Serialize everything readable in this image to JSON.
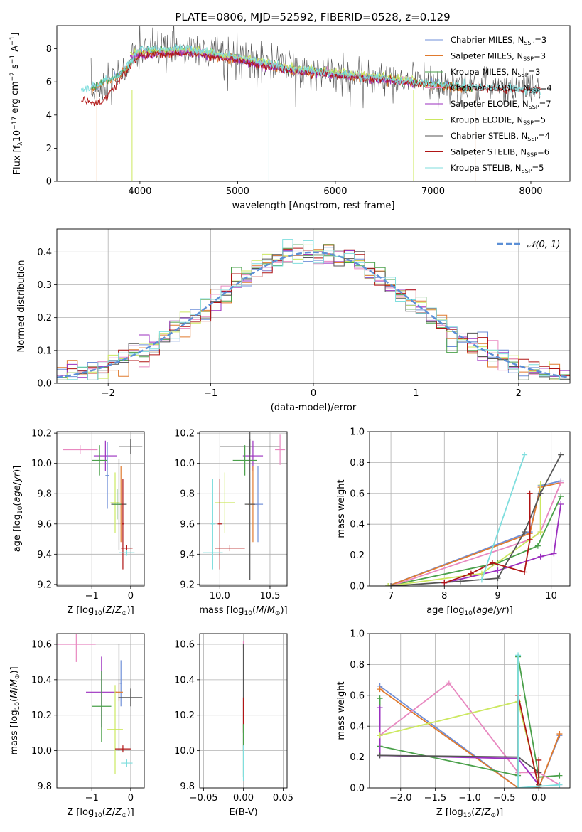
{
  "title": "PLATE=0806, MJD=52592, FIBERID=0528, z=0.129",
  "colors": {
    "Chabrier MILES": "#6f8fd8",
    "Salpeter MILES": "#e07a2e",
    "Kroupa MILES": "#4aa04a",
    "Chabrier ELODIE": "#e888c0",
    "Salpeter ELODIE": "#9b2fbf",
    "Kroupa ELODIE": "#cce860",
    "Chabrier STELIB": "#555555",
    "Salpeter STELIB": "#b01515",
    "Kroupa STELIB": "#7fdede",
    "normal": "#5b8fd6"
  },
  "chart_data": [
    {
      "id": "spectrum",
      "type": "line",
      "xlabel": "wavelength [Angstrom, rest frame]",
      "ylabel": "Flux [f_λ10^-17 erg cm^-2 s^-1 A^-1]",
      "xlim": [
        3150,
        8400
      ],
      "ylim": [
        0,
        9.4
      ],
      "xticks": [
        4000,
        5000,
        6000,
        7000,
        8000
      ],
      "yticks": [
        0,
        2,
        4,
        6,
        8
      ],
      "legend_position": "upper-right",
      "series": [
        {
          "name": "Chabrier MILES, N_SSP=3",
          "x": [
            3500,
            3800,
            4000,
            4500,
            5000,
            5500,
            6000,
            6500,
            7000,
            7400
          ],
          "y": [
            5.6,
            6.5,
            7.8,
            7.9,
            7.4,
            6.8,
            6.5,
            6.2,
            5.9,
            5.6
          ]
        },
        {
          "name": "Salpeter MILES, N_SSP=3",
          "x": [
            3500,
            3800,
            4000,
            4500,
            5000,
            5500,
            6000,
            6500,
            7000,
            7400
          ],
          "y": [
            5.5,
            6.4,
            7.7,
            7.8,
            7.3,
            6.7,
            6.4,
            6.1,
            5.8,
            5.5
          ]
        },
        {
          "name": "Kroupa MILES, N_SSP=3",
          "x": [
            3500,
            3800,
            4000,
            4500,
            5000,
            5500,
            6000,
            6500,
            7000,
            7400
          ],
          "y": [
            5.6,
            6.5,
            7.8,
            7.9,
            7.4,
            6.8,
            6.5,
            6.2,
            5.9,
            5.6
          ]
        },
        {
          "name": "Chabrier ELODIE, N_SSP=4",
          "x": [
            3900,
            4500,
            5000,
            5500,
            6000,
            6500,
            6800
          ],
          "y": [
            7.6,
            7.9,
            7.4,
            6.8,
            6.5,
            6.2,
            6.0
          ]
        },
        {
          "name": "Salpeter ELODIE, N_SSP=7",
          "x": [
            3900,
            4500,
            5000,
            5500,
            6000,
            6500,
            6800
          ],
          "y": [
            7.5,
            7.8,
            7.3,
            6.7,
            6.4,
            6.1,
            5.9
          ]
        },
        {
          "name": "Kroupa ELODIE, N_SSP=5",
          "x": [
            3900,
            4500,
            5000,
            5500,
            6000,
            6500,
            6800
          ],
          "y": [
            7.7,
            8.0,
            7.5,
            6.9,
            6.6,
            6.3,
            6.1
          ]
        },
        {
          "name": "Chabrier STELIB, N_SSP=4",
          "x": [
            3500,
            3800,
            4000,
            4500,
            5000,
            5500,
            6000,
            6500,
            7000,
            7500,
            8000,
            8100
          ],
          "y": [
            5.3,
            6.4,
            7.9,
            8.0,
            7.5,
            6.9,
            6.5,
            6.1,
            5.9,
            5.7,
            5.6,
            5.6
          ]
        },
        {
          "name": "Salpeter STELIB, N_SSP=6",
          "x": [
            3400,
            3600,
            3800,
            4000,
            4500,
            5000,
            5500,
            6000,
            6500,
            7000,
            7500,
            8000,
            8100
          ],
          "y": [
            4.9,
            4.7,
            6.2,
            7.6,
            7.7,
            7.3,
            6.7,
            6.4,
            6.1,
            5.8,
            5.6,
            5.5,
            5.5
          ]
        },
        {
          "name": "Kroupa STELIB, N_SSP=5",
          "x": [
            3400,
            3600,
            3800,
            4000,
            4500,
            5000,
            5500,
            6000,
            6500,
            7000,
            7500,
            8000,
            8100
          ],
          "y": [
            5.4,
            5.9,
            6.5,
            8.0,
            8.0,
            7.5,
            6.9,
            6.5,
            6.2,
            5.9,
            5.7,
            5.6,
            5.4
          ]
        }
      ]
    },
    {
      "id": "residuals",
      "type": "line",
      "xlabel": "(data-model)/error",
      "ylabel": "Normed distribution",
      "xlim": [
        -2.5,
        2.5
      ],
      "ylim": [
        0,
        0.47
      ],
      "xticks": [
        -2,
        -1,
        0,
        1,
        2
      ],
      "yticks": [
        0.0,
        0.1,
        0.2,
        0.3,
        0.4
      ],
      "bin_width": 0.1,
      "legend_position": "upper-right",
      "normal_label": "𝒩(0, 1)",
      "normal_mean": 0,
      "normal_sigma": 1
    },
    {
      "id": "age-vs-Z",
      "type": "scatter",
      "xlabel": "Z [log10(Z/Z☉)]",
      "ylabel": "age  [log10(age/yr)]",
      "xlim": [
        -1.9,
        0.35
      ],
      "ylim": [
        9.19,
        10.21
      ],
      "xticks": [
        -1,
        0
      ],
      "yticks": [
        9.2,
        9.4,
        9.6,
        9.8,
        10.0,
        10.2
      ],
      "points": [
        {
          "model": "Chabrier ELODIE",
          "x": -1.3,
          "y": 10.09,
          "xerr": 0.45,
          "yerr": 0.03
        },
        {
          "model": "Salpeter ELODIE",
          "x": -0.65,
          "y": 10.05,
          "xerr": 0.3,
          "yerr": 0.1
        },
        {
          "model": "Chabrier STELIB",
          "x": 0.0,
          "y": 10.11,
          "xerr": 0.3,
          "yerr": 0.05
        },
        {
          "model": "Kroupa MILES",
          "x": -0.8,
          "y": 10.02,
          "xerr": 0.2,
          "yerr": 0.1
        },
        {
          "model": "Chabrier MILES",
          "x": -0.6,
          "y": 9.92,
          "xerr": 0.05,
          "yerr": 0.22
        },
        {
          "model": "Kroupa ELODIE",
          "x": -0.4,
          "y": 9.74,
          "xerr": 0.12,
          "yerr": 0.2
        },
        {
          "model": "Salpeter MILES",
          "x": -0.25,
          "y": 9.73,
          "xerr": 0.05,
          "yerr": 0.25
        },
        {
          "model": "Chabrier STELIB",
          "x": -0.3,
          "y": 9.73,
          "xerr": 0.2,
          "yerr": 0.3
        },
        {
          "model": "Kroupa MILES",
          "x": -0.35,
          "y": 9.73,
          "xerr": 0.1,
          "yerr": 0.1
        },
        {
          "model": "Salpeter STELIB",
          "x": -0.2,
          "y": 9.6,
          "xerr": 0.03,
          "yerr": 0.3
        },
        {
          "model": "Salpeter STELIB",
          "x": -0.1,
          "y": 9.44,
          "xerr": 0.15,
          "yerr": 0.02
        },
        {
          "model": "Kroupa STELIB",
          "x": -0.1,
          "y": 9.41,
          "xerr": 0.2,
          "yerr": 0.02
        }
      ]
    },
    {
      "id": "age-vs-mass",
      "type": "scatter",
      "xlabel": "mass [log10(M/M☉)]",
      "ylabel": "",
      "xlim": [
        9.8,
        10.67
      ],
      "ylim": [
        9.19,
        10.21
      ],
      "xticks": [
        10.0,
        10.5
      ],
      "yticks": [
        9.2,
        9.4,
        9.6,
        9.8,
        10.0,
        10.2
      ],
      "points": [
        {
          "model": "Chabrier STELIB",
          "x": 10.3,
          "y": 10.11,
          "xerr": 0.3,
          "yerr": 0.05
        },
        {
          "model": "Chabrier ELODIE",
          "x": 10.6,
          "y": 10.09,
          "xerr": 0.05,
          "yerr": 0.1
        },
        {
          "model": "Salpeter ELODIE",
          "x": 10.33,
          "y": 10.05,
          "xerr": 0.1,
          "yerr": 0.1
        },
        {
          "model": "Kroupa MILES",
          "x": 10.25,
          "y": 10.02,
          "xerr": 0.12,
          "yerr": 0.1
        },
        {
          "model": "Kroupa ELODIE",
          "x": 10.05,
          "y": 9.74,
          "xerr": 0.1,
          "yerr": 0.2
        },
        {
          "model": "Salpeter MILES",
          "x": 10.33,
          "y": 9.73,
          "xerr": 0.05,
          "yerr": 0.25
        },
        {
          "model": "Chabrier MILES",
          "x": 10.38,
          "y": 9.73,
          "xerr": 0.05,
          "yerr": 0.25
        },
        {
          "model": "Chabrier STELIB",
          "x": 10.3,
          "y": 9.73,
          "xerr": 0.05,
          "yerr": 0.5
        },
        {
          "model": "Kroupa STELIB",
          "x": 9.93,
          "y": 9.6,
          "xerr": 0.02,
          "yerr": 0.3
        },
        {
          "model": "Salpeter STELIB",
          "x": 10.0,
          "y": 9.6,
          "xerr": 0.02,
          "yerr": 0.3
        },
        {
          "model": "Salpeter STELIB",
          "x": 10.1,
          "y": 9.44,
          "xerr": 0.15,
          "yerr": 0.02
        },
        {
          "model": "Kroupa STELIB",
          "x": 9.93,
          "y": 9.41,
          "xerr": 0.1,
          "yerr": 0.02
        }
      ]
    },
    {
      "id": "mass-weight-vs-age",
      "type": "line",
      "xlabel": "age  [log10(age/yr)]",
      "ylabel": "mass weight",
      "xlim": [
        6.6,
        10.35
      ],
      "ylim": [
        0,
        1.0
      ],
      "xticks": [
        7,
        8,
        9,
        10
      ],
      "yticks": [
        0.0,
        0.2,
        0.4,
        0.6,
        0.8,
        1.0
      ],
      "series": [
        {
          "model": "Chabrier MILES",
          "x": [
            6.95,
            9.6,
            9.8,
            10.18
          ],
          "y": [
            0.0,
            0.35,
            0.65,
            0.68
          ]
        },
        {
          "model": "Salpeter MILES",
          "x": [
            6.95,
            9.6,
            9.8,
            10.18
          ],
          "y": [
            0.0,
            0.34,
            0.64,
            0.67
          ]
        },
        {
          "model": "Kroupa MILES",
          "x": [
            6.95,
            9.0,
            9.75,
            10.18
          ],
          "y": [
            0.0,
            0.15,
            0.26,
            0.58
          ]
        },
        {
          "model": "Chabrier ELODIE",
          "x": [
            7.0,
            9.6,
            9.8,
            10.18
          ],
          "y": [
            0.0,
            0.3,
            0.35,
            0.67
          ]
        },
        {
          "model": "Salpeter ELODIE",
          "x": [
            8.0,
            9.0,
            9.8,
            10.05,
            10.18
          ],
          "y": [
            0.02,
            0.1,
            0.19,
            0.21,
            0.53
          ]
        },
        {
          "model": "Kroupa ELODIE",
          "x": [
            6.95,
            8.7,
            9.8,
            9.8
          ],
          "y": [
            0.0,
            0.08,
            0.35,
            0.66
          ]
        },
        {
          "model": "Chabrier STELIB",
          "x": [
            7.0,
            8.3,
            9.0,
            9.5,
            9.8,
            10.18
          ],
          "y": [
            0.0,
            0.03,
            0.05,
            0.35,
            0.6,
            0.85
          ]
        },
        {
          "model": "Salpeter STELIB",
          "x": [
            8.0,
            8.5,
            8.9,
            9.5,
            9.6,
            9.6
          ],
          "y": [
            0.02,
            0.08,
            0.15,
            0.09,
            0.3,
            0.6
          ]
        },
        {
          "model": "Kroupa STELIB",
          "x": [
            8.7,
            9.5
          ],
          "y": [
            0.04,
            0.85
          ]
        }
      ]
    },
    {
      "id": "mass-vs-Z",
      "type": "scatter",
      "xlabel": "Z [log10(Z/Z☉)]",
      "ylabel": "mass [log10(M/M☉)]",
      "xlim": [
        -1.9,
        0.35
      ],
      "ylim": [
        9.79,
        10.66
      ],
      "xticks": [
        -1,
        0
      ],
      "yticks": [
        9.8,
        10.0,
        10.2,
        10.4,
        10.6
      ],
      "points": [
        {
          "model": "Chabrier ELODIE",
          "x": -1.4,
          "y": 10.6,
          "xerr": 0.5,
          "yerr": 0.1
        },
        {
          "model": "Chabrier MILES",
          "x": -0.25,
          "y": 10.38,
          "xerr": 0.03,
          "yerr": 0.13
        },
        {
          "model": "Salpeter ELODIE",
          "x": -0.75,
          "y": 10.33,
          "xerr": 0.4,
          "yerr": 0.2
        },
        {
          "model": "Salpeter MILES",
          "x": -0.3,
          "y": 10.33,
          "xerr": 0.1,
          "yerr": 0.05
        },
        {
          "model": "Chabrier STELIB",
          "x": 0.0,
          "y": 10.3,
          "xerr": 0.3,
          "yerr": 0.05
        },
        {
          "model": "Chabrier STELIB",
          "x": -0.3,
          "y": 10.3,
          "xerr": 0.02,
          "yerr": 0.3
        },
        {
          "model": "Kroupa MILES",
          "x": -0.75,
          "y": 10.25,
          "xerr": 0.25,
          "yerr": 0.2
        },
        {
          "model": "Kroupa ELODIE",
          "x": -0.4,
          "y": 10.12,
          "xerr": 0.2,
          "yerr": 0.25
        },
        {
          "model": "Salpeter STELIB",
          "x": -0.2,
          "y": 10.01,
          "xerr": 0.2,
          "yerr": 0.02
        },
        {
          "model": "Kroupa STELIB",
          "x": -0.1,
          "y": 9.93,
          "xerr": 0.15,
          "yerr": 0.02
        }
      ]
    },
    {
      "id": "mass-vs-EBV",
      "type": "scatter",
      "xlabel": "E(B-V)",
      "ylabel": "",
      "xlim": [
        -0.055,
        0.055
      ],
      "ylim": [
        9.79,
        10.66
      ],
      "xticks": [
        -0.05,
        0.0,
        0.05
      ],
      "yticks": [
        9.8,
        10.0,
        10.2,
        10.4,
        10.6
      ],
      "points": [
        {
          "model": "Chabrier ELODIE",
          "x": 0.0,
          "y": 10.6,
          "xerr": 0,
          "yerr": 0.02
        },
        {
          "model": "Chabrier STELIB",
          "x": 0.0,
          "y": 10.3,
          "xerr": 0,
          "yerr": 0.3
        },
        {
          "model": "Salpeter STELIB",
          "x": 0.0,
          "y": 10.2,
          "xerr": 0,
          "yerr": 0.1
        },
        {
          "model": "Kroupa MILES",
          "x": 0.0,
          "y": 10.0,
          "xerr": 0,
          "yerr": 0.15
        },
        {
          "model": "Kroupa STELIB",
          "x": 0.0,
          "y": 9.93,
          "xerr": 0,
          "yerr": 0.1
        }
      ]
    },
    {
      "id": "mass-weight-vs-Z",
      "type": "line",
      "xlabel": "Z [log10(Z/Z☉)]",
      "ylabel": "mass weight",
      "xlim": [
        -2.45,
        0.45
      ],
      "ylim": [
        0,
        1.0
      ],
      "xticks": [
        -2.0,
        -1.5,
        -1.0,
        -0.5,
        0.0
      ],
      "yticks": [
        0.0,
        0.2,
        0.4,
        0.6,
        0.8,
        1.0
      ],
      "series": [
        {
          "model": "Chabrier MILES",
          "x": [
            -2.3,
            -0.3,
            0.0,
            0.3
          ],
          "y": [
            0.66,
            0.0,
            0.0,
            0.34
          ]
        },
        {
          "model": "Salpeter MILES",
          "x": [
            -2.3,
            -0.3,
            0.0,
            0.3
          ],
          "y": [
            0.64,
            0.0,
            0.0,
            0.35
          ]
        },
        {
          "model": "Kroupa MILES",
          "x": [
            -2.3,
            -2.3,
            -0.3,
            -0.3,
            0.0,
            0.3
          ],
          "y": [
            0.58,
            0.27,
            0.08,
            0.85,
            0.07,
            0.08
          ]
        },
        {
          "model": "Chabrier ELODIE",
          "x": [
            -2.3,
            -1.3,
            -0.3,
            0.0,
            0.3
          ],
          "y": [
            0.34,
            0.68,
            0.1,
            0.1,
            0.02
          ]
        },
        {
          "model": "Salpeter ELODIE",
          "x": [
            -2.3,
            -2.3,
            -0.3,
            0.0
          ],
          "y": [
            0.52,
            0.21,
            0.19,
            0.02
          ]
        },
        {
          "model": "Kroupa ELODIE",
          "x": [
            -2.3,
            -0.3,
            0.0,
            0.0
          ],
          "y": [
            0.34,
            0.56,
            0.02,
            0.02
          ]
        },
        {
          "model": "Chabrier STELIB",
          "x": [
            -2.3,
            -0.3,
            0.0,
            0.0
          ],
          "y": [
            0.21,
            0.2,
            0.1,
            0.02
          ]
        },
        {
          "model": "Salpeter STELIB",
          "x": [
            -0.3,
            -0.3,
            0.0,
            0.0
          ],
          "y": [
            0.09,
            0.6,
            0.0,
            0.18
          ]
        },
        {
          "model": "Kroupa STELIB",
          "x": [
            -0.3,
            -0.3,
            0.0,
            0.3
          ],
          "y": [
            0.86,
            0.0,
            0.01,
            0.02
          ]
        }
      ]
    }
  ]
}
